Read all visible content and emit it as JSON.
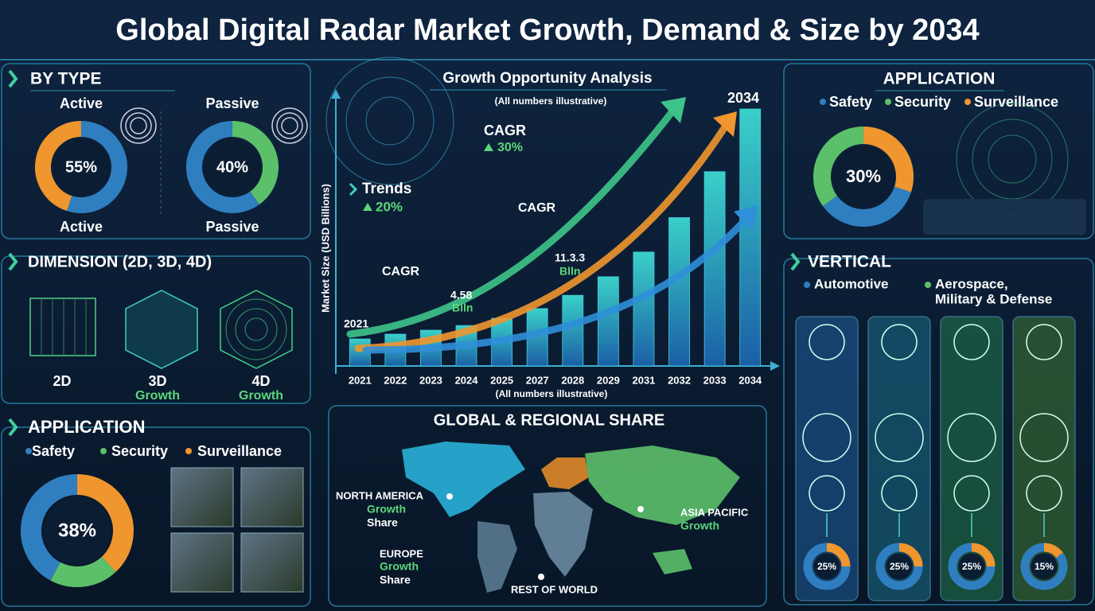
{
  "title": "Global Digital Radar Market Growth, Demand & Size by 2034",
  "by_type": {
    "heading": "BY TYPE",
    "donuts": [
      {
        "top": "Active",
        "value": 55,
        "value_label": "55%",
        "bottom": "Active",
        "color": "#2f7fc0",
        "rest_color": "#f0962e"
      },
      {
        "top": "Passive",
        "value": 40,
        "value_label": "40%",
        "bottom": "Passive",
        "color": "#5cc06a",
        "rest_color": "#2f7fc0"
      }
    ]
  },
  "dimension": {
    "heading": "DIMENSION (2D, 3D, 4D)",
    "items": [
      {
        "label": "2D"
      },
      {
        "label": "3D",
        "note": "Growth"
      },
      {
        "label": "4D",
        "note": "Growth"
      }
    ]
  },
  "application_left": {
    "heading": "APPLICATION",
    "legend": [
      {
        "name": "Safety",
        "color": "#2f7fc0"
      },
      {
        "name": "Security",
        "color": "#5cc06a"
      },
      {
        "name": "Surveillance",
        "color": "#f0962e"
      }
    ],
    "donut": {
      "value": 38,
      "value_label": "38%"
    }
  },
  "growth": {
    "type": "bar",
    "title": "Growth Opportunity Analysis",
    "subtitle": "(All numbers illustrative)",
    "y_label": "Market Size (USD Billions)",
    "footnote": "(All numbers illustrative)",
    "categories": [
      "2021",
      "2022",
      "2023",
      "2024",
      "2025",
      "2027",
      "2028",
      "2029",
      "2031",
      "2032",
      "2033",
      "2034"
    ],
    "values": [
      3.06,
      3.6,
      4.05,
      4.58,
      5.4,
      6.5,
      8.0,
      10.1,
      12.9,
      16.8,
      22.0,
      29.1
    ],
    "ylim": [
      0,
      30
    ],
    "color": "#2a8cc4",
    "annotations": {
      "cagr_top": "CAGR",
      "cagr_top_value": "30%",
      "trends": "Trends",
      "trends_value": "20%",
      "cagr_mid": "CAGR",
      "cagr_low": "CAGR",
      "start_year": "2021",
      "end_year": "2034",
      "point_a": "4.58",
      "point_a_unit": "Blln",
      "point_b": "11.3.3",
      "point_b_unit": "Blln"
    }
  },
  "application_right": {
    "heading": "APPLICATION",
    "legend": [
      {
        "name": "Safety",
        "color": "#2f7fc0"
      },
      {
        "name": "Security",
        "color": "#5cc06a"
      },
      {
        "name": "Surveillance",
        "color": "#f0962e"
      }
    ],
    "donut": {
      "value": 30,
      "value_label": "30%"
    }
  },
  "vertical": {
    "heading": "VERTICAL",
    "legend": [
      {
        "lines": [
          "Automotive"
        ],
        "color": "#2f7fc0"
      },
      {
        "lines": [
          "Aerospace,",
          "Military & Defense"
        ],
        "color": "#5cc06a"
      }
    ],
    "columns": [
      {
        "value": 25,
        "value_label": "25%",
        "color": "#1f5f9e"
      },
      {
        "value": 25,
        "value_label": "25%",
        "color": "#1b6f8a"
      },
      {
        "value": 25,
        "value_label": "25%",
        "color": "#237a4e"
      },
      {
        "value": 15,
        "value_label": "15%",
        "color": "#3f7a35"
      }
    ]
  },
  "regional": {
    "title": "GLOBAL & REGIONAL SHARE",
    "north_america": [
      "NORTH AMERICA",
      "Growth",
      "Share"
    ],
    "europe": [
      "EUROPE",
      "Growth",
      "Share"
    ],
    "asia_pacific": [
      "ASIA PACIFIC",
      "Growth"
    ],
    "rest_of_world": "REST OF WORLD"
  }
}
